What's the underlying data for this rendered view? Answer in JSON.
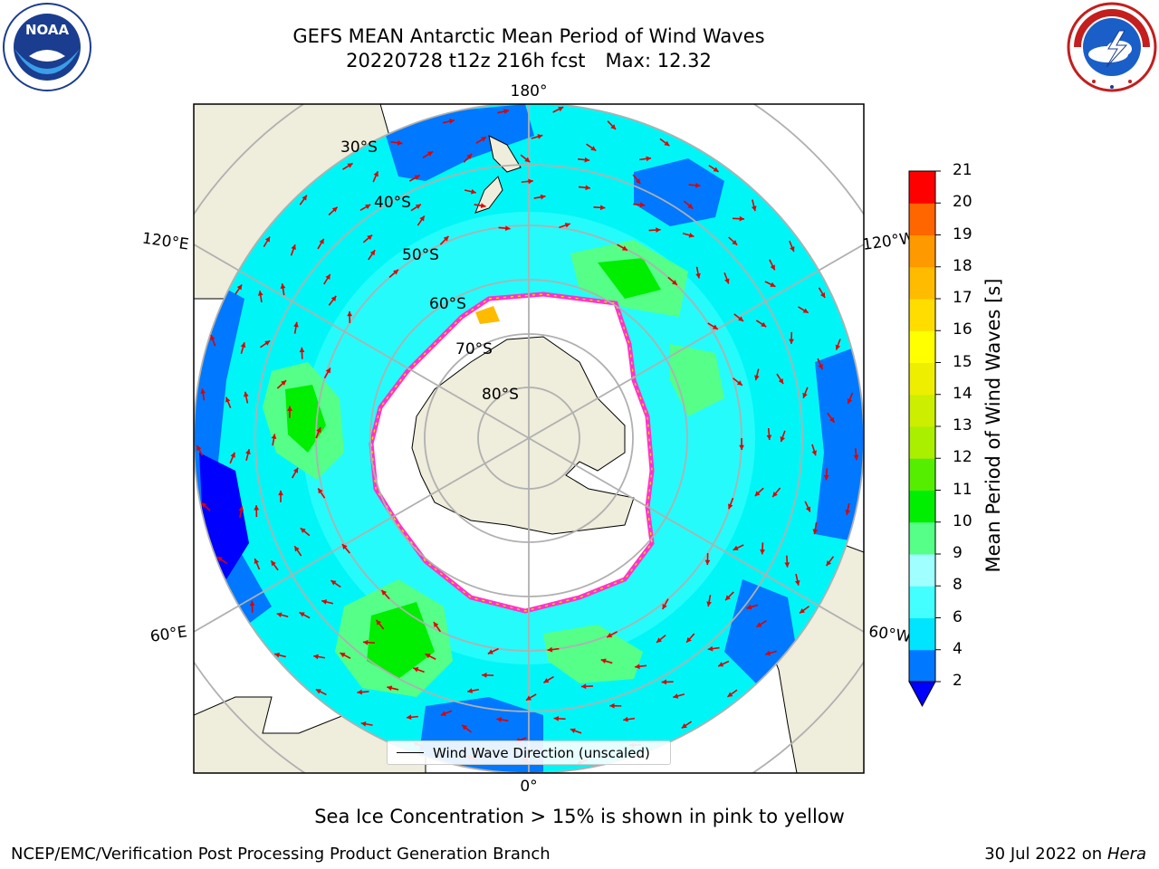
{
  "title": {
    "line1": "GEFS MEAN Antarctic Mean Period of Wind Waves",
    "line2_run": "20220728 t12z 216h fcst",
    "line2_max": "Max: 12.32"
  },
  "logos": {
    "left": "noaa-logo",
    "right": "nws-logo"
  },
  "map": {
    "projection": "south-polar-stereographic",
    "longitude_labels": [
      "180°",
      "120°E",
      "120°W",
      "60°E",
      "60°W",
      "0°"
    ],
    "latitude_labels": [
      "30°S",
      "40°S",
      "50°S",
      "60°S",
      "70°S",
      "80°S"
    ],
    "colors": {
      "land": "#efeddb",
      "ocean_main": "#00f6f6",
      "ocean_low": "#0078ff",
      "ice_edge": "#ff33cc",
      "arrows": "#e00000",
      "grid": "#b0b0b0"
    }
  },
  "colorbar": {
    "label": "Mean Period of Wind Waves [s]",
    "ticks": [
      "2",
      "4",
      "6",
      "8",
      "9",
      "10",
      "11",
      "12",
      "13",
      "14",
      "15",
      "16",
      "17",
      "18",
      "19",
      "20",
      "21"
    ],
    "colors": [
      "#0078ff",
      "#00e5ff",
      "#44ffff",
      "#a0ffff",
      "#55ff88",
      "#00ee00",
      "#55ee00",
      "#aaee00",
      "#ccee00",
      "#eeee00",
      "#ffff00",
      "#ffdd00",
      "#ffbb00",
      "#ff9900",
      "#ff6600",
      "#ff3300",
      "#ff0000"
    ],
    "under_color": "#0000ff"
  },
  "legend": {
    "label": "Wind Wave Direction (unscaled)"
  },
  "note": "Sea Ice Concentration > 15% is shown in pink to yellow",
  "footer": {
    "left": "NCEP/EMC/Verification Post Processing Product Generation Branch",
    "right_date": "30 Jul 2022 on",
    "right_host": "Hera"
  }
}
